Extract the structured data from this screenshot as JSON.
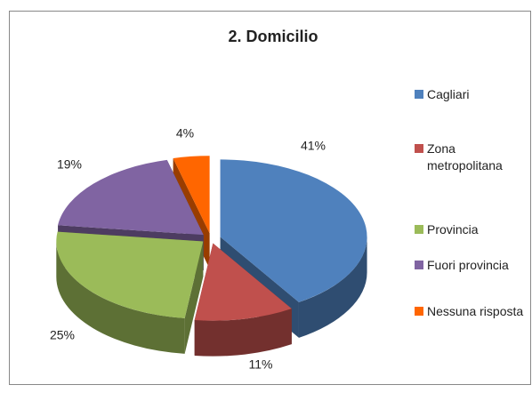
{
  "chart_data": {
    "type": "pie",
    "title": "2. Domicilio",
    "categories": [
      "Cagliari",
      "Zona metropolitana",
      "Provincia",
      "Fuori provincia",
      "Nessuna risposta"
    ],
    "values": [
      41,
      11,
      25,
      19,
      4
    ],
    "value_labels": [
      "41%",
      "11%",
      "25%",
      "19%",
      "4%"
    ],
    "colors": [
      "#4f81bd",
      "#c0504d",
      "#9bbb59",
      "#8064a2",
      "#ff6600"
    ],
    "legend": "right"
  }
}
